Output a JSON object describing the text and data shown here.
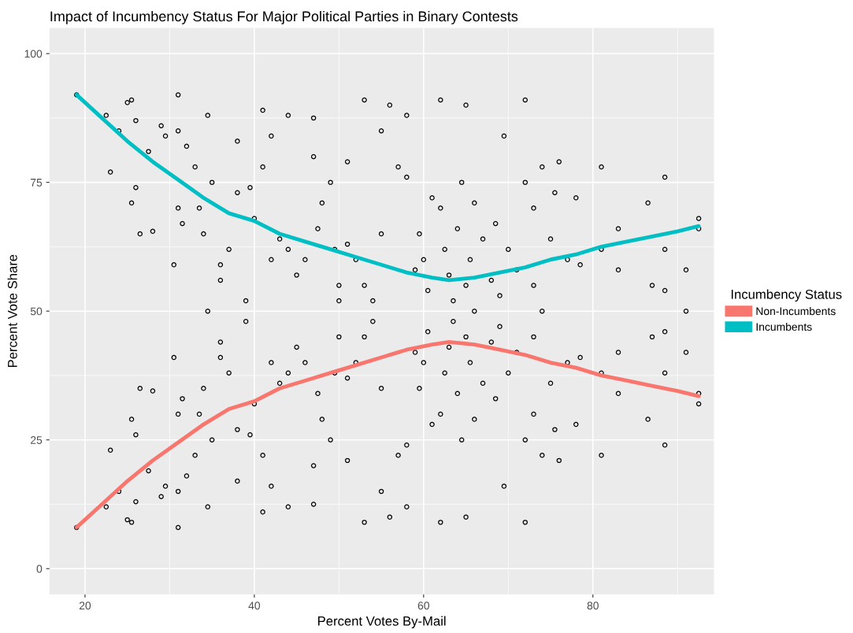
{
  "chart_data": {
    "type": "scatter",
    "title": "Impact of Incumbency Status For Major Political Parties in Binary Contests",
    "xlabel": "Percent Votes By-Mail",
    "ylabel": "Percent Vote Share",
    "legend_title": "Incumbency Status",
    "xlim": [
      15.8,
      94.3
    ],
    "ylim": [
      -5,
      105
    ],
    "xticks": [
      20,
      40,
      60,
      80
    ],
    "yticks": [
      0,
      25,
      50,
      75,
      100
    ],
    "grid": true,
    "legend": "right",
    "series": [
      {
        "marker": "circle",
        "color": "#000000",
        "x": [
          19,
          19,
          22.5,
          22.5,
          23,
          23,
          24,
          24,
          25,
          25,
          25.5,
          25.5,
          25.5,
          25.5,
          26,
          26,
          26,
          26,
          26.5,
          26.5,
          28,
          28,
          27.5,
          27.5,
          29,
          29,
          29.5,
          29.5,
          30.5,
          30.5,
          31,
          31,
          31,
          31,
          31,
          31,
          31.5,
          31.5,
          32,
          32,
          33,
          33,
          33.5,
          33.5,
          34,
          34,
          34.5,
          34.5,
          34.5,
          35,
          35,
          36,
          36,
          36,
          36,
          37,
          37,
          38,
          38,
          38,
          38,
          39,
          39,
          39.5,
          39.5,
          40,
          40,
          41,
          41,
          41,
          41,
          42,
          42,
          42,
          42,
          43,
          43,
          44,
          44,
          44,
          44,
          45,
          45,
          46,
          46,
          47,
          47,
          47,
          47,
          47.5,
          47.5,
          48,
          48,
          49,
          49,
          49.5,
          49.5,
          50,
          50,
          50,
          51,
          51,
          51,
          51,
          52,
          52,
          53,
          53,
          53,
          53,
          54,
          54,
          55,
          55,
          55,
          55,
          56,
          56,
          57,
          57,
          58,
          58,
          58,
          58,
          59,
          59,
          59.5,
          59.5,
          60,
          60,
          60.5,
          60.5,
          61,
          61,
          62,
          62,
          62,
          62,
          62.5,
          62.5,
          63,
          63,
          63.5,
          63.5,
          64,
          64,
          64.5,
          64.5,
          65,
          65,
          65,
          65,
          65.5,
          65.5,
          66,
          66,
          66,
          67,
          67,
          68,
          68,
          68.5,
          68.5,
          69,
          69,
          69.5,
          69.5,
          70,
          70,
          71,
          71,
          72,
          72,
          72,
          72,
          73,
          73,
          73,
          73,
          74,
          74,
          74,
          75,
          75,
          75.5,
          75.5,
          76,
          76,
          77,
          77,
          78,
          78,
          78.5,
          78.5,
          81,
          81,
          81,
          81,
          83,
          83,
          83,
          83,
          86.5,
          86.5,
          87,
          87,
          88.5,
          88.5,
          88.5,
          88.5,
          88.5,
          88.5,
          91,
          91,
          91,
          92.5,
          92.5,
          92.5,
          92.5
        ],
        "values": [
          92,
          8,
          88,
          12,
          77,
          23,
          85,
          15,
          90.5,
          9.5,
          91,
          9,
          71,
          29,
          74,
          26,
          87,
          13,
          65,
          35,
          65.5,
          34.5,
          81,
          19,
          86,
          14,
          84,
          16,
          59,
          41,
          92,
          8,
          85,
          15,
          70,
          30,
          67,
          33,
          82,
          18,
          78,
          22,
          70,
          30,
          65,
          35,
          50,
          88,
          12,
          75,
          25,
          59,
          41,
          56,
          44,
          62,
          38,
          83,
          17,
          73,
          27,
          52,
          48,
          74,
          26,
          68,
          32,
          78,
          22,
          89,
          11,
          84,
          16,
          60,
          40,
          64,
          36,
          88,
          12,
          62,
          38,
          57,
          43,
          60,
          40,
          87.5,
          12.5,
          80,
          20,
          66,
          34,
          71,
          29,
          75,
          25,
          62,
          38,
          55,
          45,
          52,
          79,
          21,
          63,
          37,
          60,
          40,
          91,
          9,
          55,
          45,
          52,
          48,
          85,
          15,
          65,
          35,
          90,
          10,
          78,
          22,
          76,
          24,
          88,
          12,
          58,
          42,
          65,
          35,
          60,
          40,
          54,
          46,
          72,
          28,
          91,
          9,
          70,
          30,
          62,
          38,
          57,
          43,
          52,
          48,
          66,
          34,
          75,
          25,
          90,
          10,
          55,
          45,
          60,
          40,
          71,
          29,
          50,
          64,
          36,
          56,
          44,
          67,
          33,
          53,
          47,
          84,
          16,
          62,
          38,
          58,
          42,
          91,
          9,
          75,
          25,
          70,
          30,
          55,
          45,
          78,
          22,
          50,
          64,
          36,
          73,
          27,
          79,
          21,
          60,
          40,
          72,
          28,
          59,
          41,
          78,
          22,
          62,
          38,
          66,
          34,
          58,
          42,
          71,
          29,
          55,
          45,
          76,
          24,
          62,
          38,
          54,
          46,
          58,
          42,
          50,
          68,
          32,
          66,
          34
        ]
      },
      {
        "type": "line",
        "name": "Non-Incumbents",
        "color": "#f8766d",
        "x": [
          19,
          22,
          25,
          28,
          31,
          34,
          37,
          40,
          43,
          46,
          49,
          52,
          55,
          58,
          61,
          63,
          66,
          69,
          72,
          75,
          78,
          81,
          84,
          87,
          90,
          92.5
        ],
        "values": [
          8,
          12.5,
          17,
          21,
          24.5,
          28,
          31,
          32.5,
          35,
          36.5,
          38,
          39.5,
          41,
          42.5,
          43.5,
          44,
          43.5,
          42.5,
          41.5,
          40,
          39,
          37.5,
          36.5,
          35.5,
          34.5,
          33.5
        ]
      },
      {
        "type": "line",
        "name": "Incumbents",
        "color": "#00bfc4",
        "x": [
          19,
          22,
          25,
          28,
          31,
          34,
          37,
          40,
          43,
          46,
          49,
          52,
          55,
          58,
          61,
          63,
          66,
          69,
          72,
          75,
          78,
          81,
          84,
          87,
          90,
          92.5
        ],
        "values": [
          92,
          87.5,
          83,
          79,
          75.5,
          72,
          69,
          67.5,
          65,
          63.5,
          62,
          60.5,
          59,
          57.5,
          56.5,
          56,
          56.5,
          57.5,
          58.5,
          60,
          61,
          62.5,
          63.5,
          64.5,
          65.5,
          66.5
        ]
      }
    ]
  }
}
